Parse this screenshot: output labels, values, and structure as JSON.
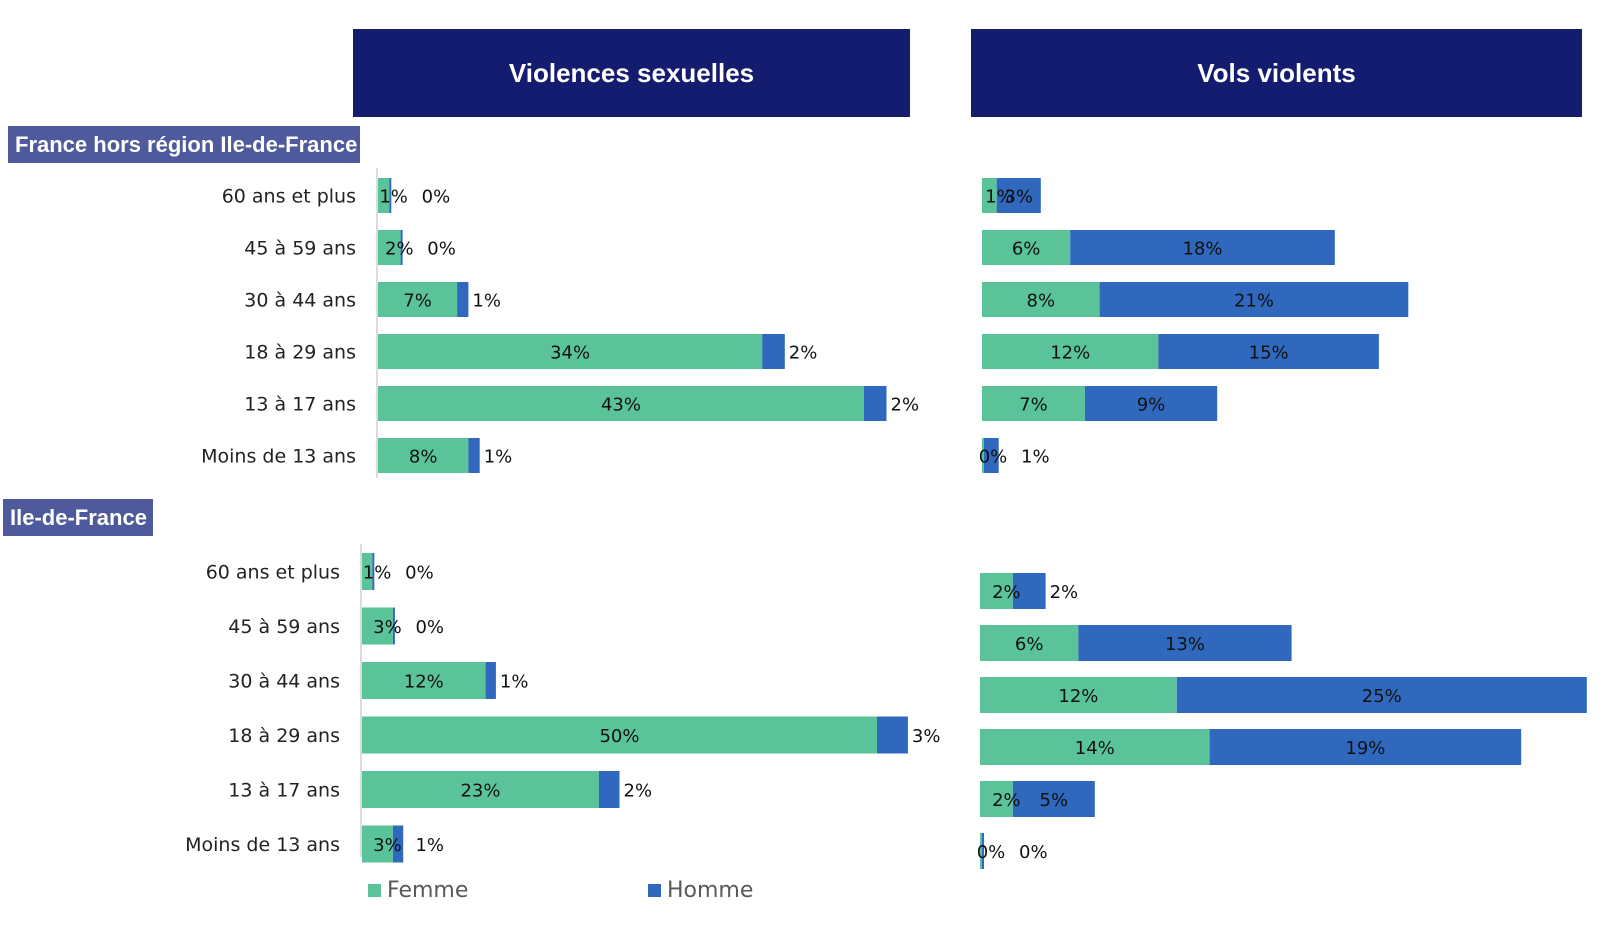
{
  "colors": {
    "header_bg": "#131c6e",
    "region_bg": "#4f5a9c",
    "femme": "#5ac39a",
    "homme": "#2f68bd"
  },
  "headers": {
    "left": "Violences sexuelles",
    "right": "Vols violents"
  },
  "regions": [
    "France hors région Ile-de-France",
    "Ile-de-France"
  ],
  "legend": {
    "femme": "Femme",
    "homme": "Homme"
  },
  "chart_data": [
    {
      "type": "bar",
      "orientation": "horizontal",
      "stacked": true,
      "panel": "Violences sexuelles",
      "group": "France hors région Ile-de-France",
      "categories": [
        "60 ans et plus",
        "45 à 59 ans",
        "30 à 44 ans",
        "18 à 29 ans",
        "13 à 17 ans",
        "Moins de 13 ans"
      ],
      "series": [
        {
          "name": "Femme",
          "values": [
            1,
            2,
            7,
            34,
            43,
            8
          ]
        },
        {
          "name": "Homme",
          "values": [
            0,
            0,
            1,
            2,
            2,
            1
          ]
        }
      ]
    },
    {
      "type": "bar",
      "orientation": "horizontal",
      "stacked": true,
      "panel": "Vols violents",
      "group": "France hors région Ile-de-France",
      "categories": [
        "60 ans et plus",
        "45 à 59 ans",
        "30 à 44 ans",
        "18 à 29 ans",
        "13 à 17 ans",
        "Moins de 13 ans"
      ],
      "series": [
        {
          "name": "Femme",
          "values": [
            1,
            6,
            8,
            12,
            7,
            0
          ]
        },
        {
          "name": "Homme",
          "values": [
            3,
            18,
            21,
            15,
            9,
            1
          ]
        }
      ]
    },
    {
      "type": "bar",
      "orientation": "horizontal",
      "stacked": true,
      "panel": "Violences sexuelles",
      "group": "Ile-de-France",
      "categories": [
        "60 ans et plus",
        "45 à 59 ans",
        "30 à 44 ans",
        "18 à 29 ans",
        "13 à 17 ans",
        "Moins de 13 ans"
      ],
      "series": [
        {
          "name": "Femme",
          "values": [
            1,
            3,
            12,
            50,
            23,
            3
          ]
        },
        {
          "name": "Homme",
          "values": [
            0,
            0,
            1,
            3,
            2,
            1
          ]
        }
      ]
    },
    {
      "type": "bar",
      "orientation": "horizontal",
      "stacked": true,
      "panel": "Vols violents",
      "group": "Ile-de-France",
      "categories": [
        "60 ans et plus",
        "45 à 59 ans",
        "30 à 44 ans",
        "18 à 29 ans",
        "13 à 17 ans",
        "Moins de 13 ans"
      ],
      "series": [
        {
          "name": "Femme",
          "values": [
            2,
            6,
            12,
            14,
            2,
            0
          ]
        },
        {
          "name": "Homme",
          "values": [
            2,
            13,
            25,
            19,
            5,
            0
          ]
        }
      ]
    }
  ]
}
